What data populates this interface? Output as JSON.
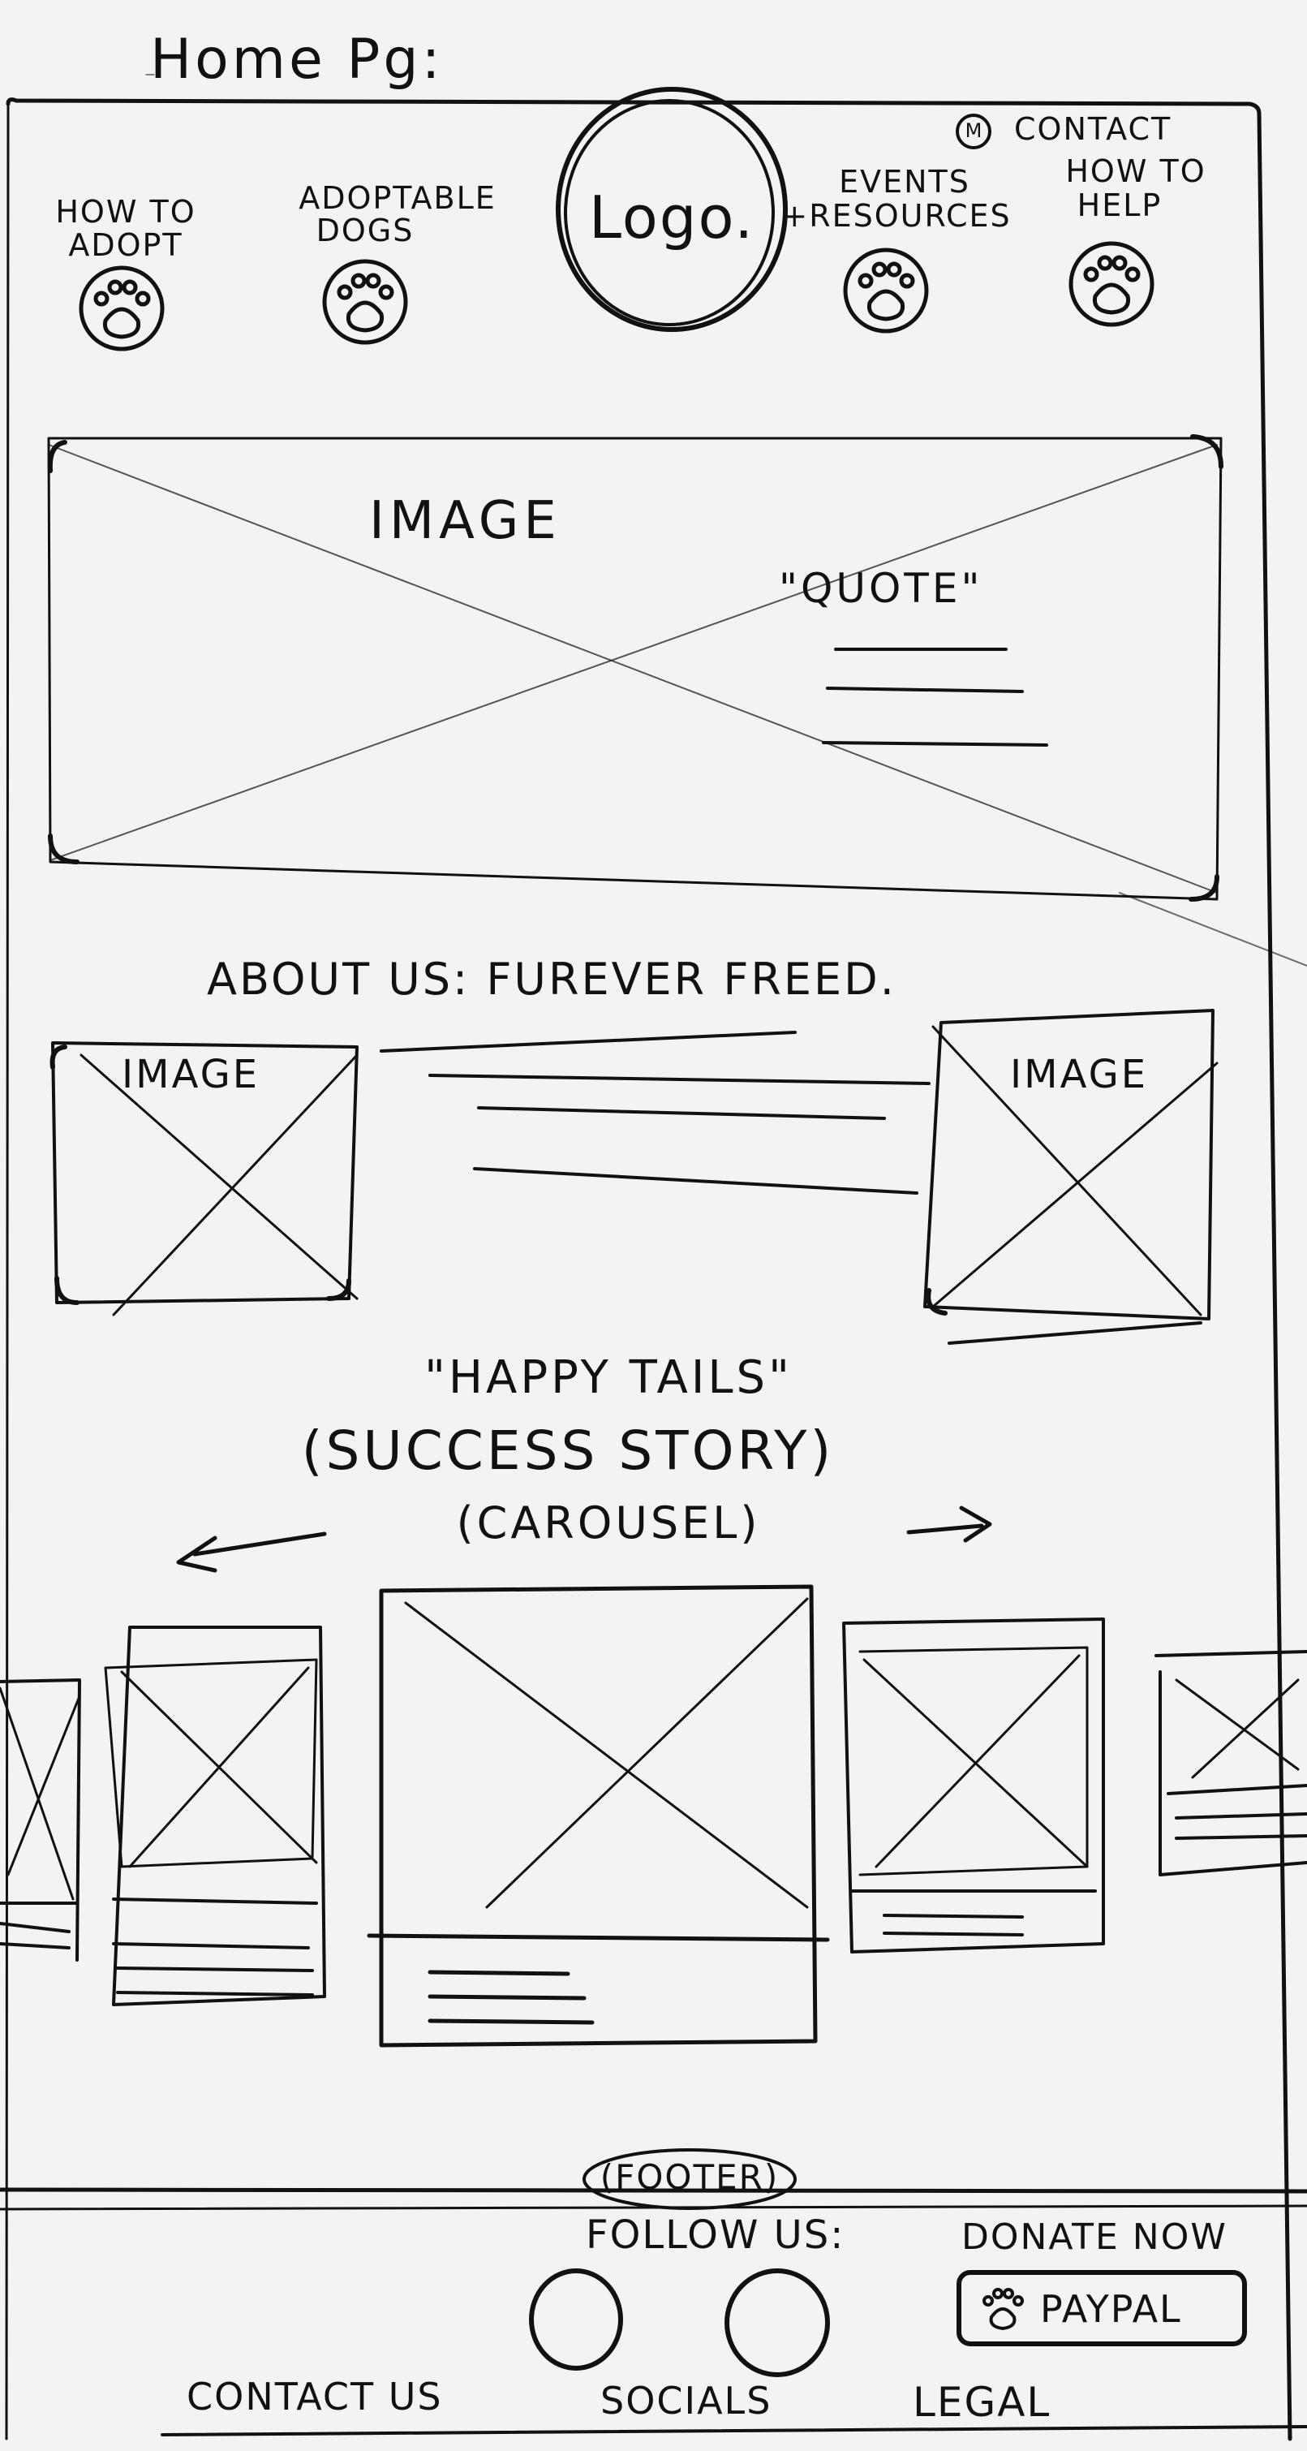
{
  "page_title": "Home Pg:",
  "nav": {
    "logo_text": "Logo.",
    "contact_icon_text": "M",
    "contact_label": "Contact",
    "items": [
      {
        "label_line1": "How to",
        "label_line2": "Adopt",
        "icon": "paw-icon"
      },
      {
        "label_line1": "Adoptable",
        "label_line2": "Dogs",
        "icon": "paw-icon"
      },
      {
        "label_line1": "Events",
        "label_line2": "+Resources",
        "icon": "paw-icon"
      },
      {
        "label_line1": "How to",
        "label_line2": "Help",
        "icon": "paw-icon"
      }
    ]
  },
  "hero": {
    "image_label": "Image",
    "quote_label": "\"Quote\""
  },
  "about": {
    "heading": "About us: Furever Freed.",
    "left_image_label": "Image",
    "right_image_label": "Image"
  },
  "success": {
    "title": "\"Happy Tails\"",
    "subtitle": "(Success Story)",
    "carousel_label": "(Carousel)"
  },
  "footer": {
    "label": "(Footer)",
    "follow_label": "Follow us:",
    "donate_label": "Donate Now",
    "paypal_label": "PayPal",
    "contact_us_label": "Contact us",
    "socials_label": "Socials",
    "legal_label": "Legal"
  },
  "colors": {
    "paper": "#f3f3f1",
    "ink": "#111111"
  }
}
